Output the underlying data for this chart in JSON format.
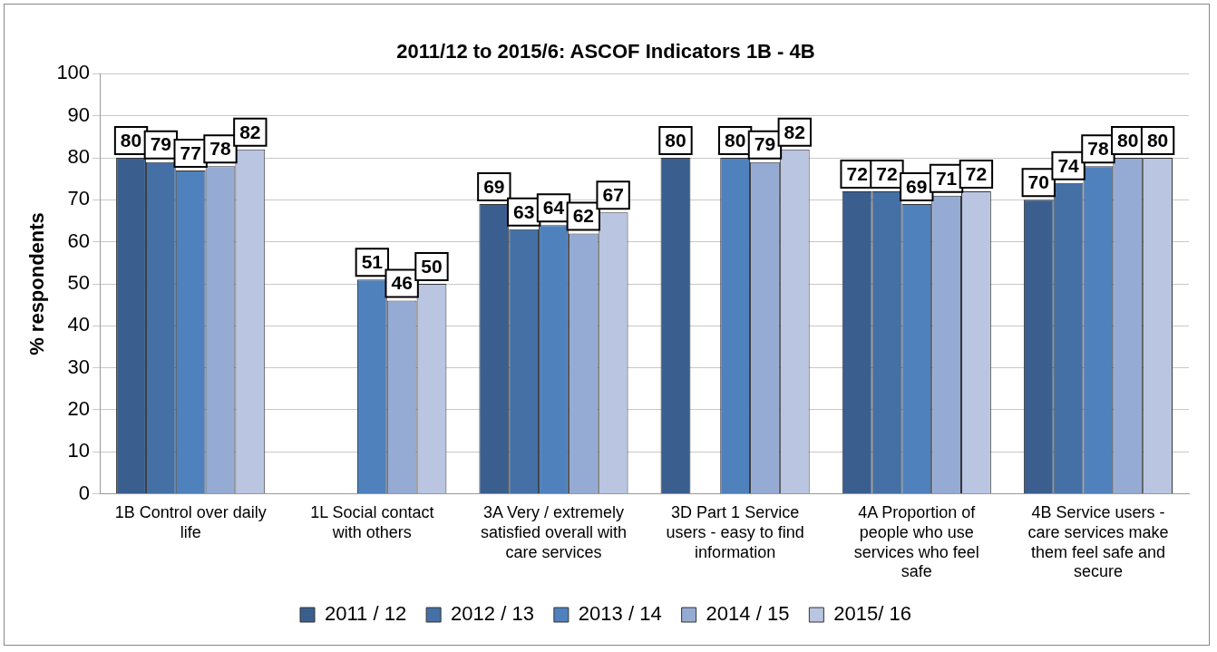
{
  "chart_data": {
    "type": "bar",
    "title": "2011/12 to 2015/6: ASCOF Indicators 1B - 4B",
    "ylabel": "% respondents",
    "categories": [
      "1B Control over daily life",
      "1L Social contact with others",
      "3A Very / extremely satisfied overall with care services",
      "3D Part 1 Service users - easy to find information",
      "4A Proportion of people who use services who feel safe",
      "4B Service users - care services make them feel safe and secure"
    ],
    "series": [
      {
        "name": "2011 / 12",
        "color": "#3a5f8f",
        "values": [
          80,
          null,
          69,
          80,
          72,
          70
        ]
      },
      {
        "name": "2012 / 13",
        "color": "#4470a6",
        "values": [
          79,
          null,
          63,
          null,
          72,
          74
        ]
      },
      {
        "name": "2013 / 14",
        "color": "#4f81bd",
        "values": [
          77,
          51,
          64,
          80,
          69,
          78
        ]
      },
      {
        "name": "2014 / 15",
        "color": "#95abd3",
        "values": [
          78,
          46,
          62,
          79,
          71,
          80
        ]
      },
      {
        "name": "2015/ 16",
        "color": "#b9c5e1",
        "values": [
          82,
          50,
          67,
          82,
          72,
          80
        ]
      }
    ],
    "ylim": [
      0,
      100
    ],
    "yticks": [
      0,
      10,
      20,
      30,
      40,
      50,
      60,
      70,
      80,
      90,
      100
    ],
    "grid": "y",
    "legend": "bottom",
    "data_labels": true
  }
}
